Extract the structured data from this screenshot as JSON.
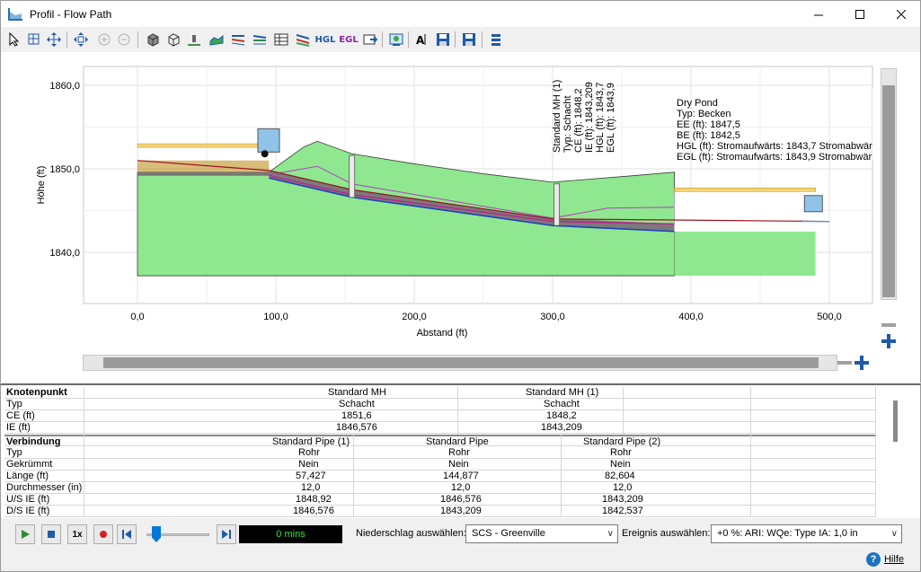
{
  "window": {
    "title": "Profil - Flow Path"
  },
  "toolbar": {
    "buttons": [
      {
        "name": "select-icon"
      },
      {
        "name": "zoom-window-icon"
      },
      {
        "name": "pan-icon"
      },
      {
        "name": "zoom-extents-icon"
      },
      {
        "name": "zoom-in-icon"
      },
      {
        "name": "zoom-out-icon"
      },
      {
        "name": "3d-box-icon"
      },
      {
        "name": "3d-wire-icon"
      },
      {
        "name": "node-icon"
      },
      {
        "name": "surface-icon"
      },
      {
        "name": "profile-lines-icon"
      },
      {
        "name": "profile-lines-2-icon"
      },
      {
        "name": "table-icon"
      },
      {
        "name": "flow-lines-icon"
      },
      {
        "name": "hgl-icon"
      },
      {
        "name": "egl-icon"
      },
      {
        "name": "export-icon"
      },
      {
        "name": "image-icon"
      },
      {
        "name": "text-annotation-icon"
      },
      {
        "name": "save-icon"
      },
      {
        "name": "save-as-icon"
      },
      {
        "name": "settings-icon"
      }
    ],
    "hgl_label": "HGL",
    "egl_label": "EGL"
  },
  "chart_data": {
    "type": "profile",
    "xlabel": "Abstand (ft)",
    "ylabel": "Höhe (ft)",
    "xlim": [
      -40,
      530
    ],
    "ylim": [
      1834.5,
      1862.5
    ],
    "x_ticks": [
      "0,0",
      "100,0",
      "200,0",
      "300,0",
      "400,0",
      "500,0"
    ],
    "x_tick_values": [
      0,
      100,
      200,
      300,
      400,
      500
    ],
    "y_ticks": [
      "1840,0",
      "1850,0",
      "1860,0"
    ],
    "y_tick_values": [
      1840,
      1850,
      1860
    ],
    "grid": true,
    "ground_surface": {
      "points": [
        [
          0,
          1849.6
        ],
        [
          95,
          1849.6
        ],
        [
          120,
          1852.6
        ],
        [
          130,
          1853.3
        ],
        [
          155,
          1851.8
        ],
        [
          200,
          1850.6
        ],
        [
          250,
          1849.4
        ],
        [
          300,
          1848.4
        ],
        [
          360,
          1849.2
        ],
        [
          388,
          1849.6
        ],
        [
          388,
          1837.2
        ],
        [
          0,
          1837.2
        ]
      ]
    },
    "pipe_invert": {
      "points": [
        [
          95,
          1848.9
        ],
        [
          155,
          1846.6
        ],
        [
          300,
          1843.2
        ],
        [
          388,
          1842.5
        ]
      ]
    },
    "hgl_line": {
      "points": [
        [
          95,
          1849.2
        ],
        [
          155,
          1846.9
        ],
        [
          300,
          1843.7
        ],
        [
          388,
          1843.4
        ]
      ]
    },
    "egl_line": {
      "points": [
        [
          95,
          1849.3
        ],
        [
          130,
          1850.3
        ],
        [
          155,
          1848.2
        ],
        [
          300,
          1844.1
        ],
        [
          340,
          1845.3
        ],
        [
          388,
          1845.4
        ]
      ]
    },
    "pond_hgl": {
      "points": [
        [
          0,
          1851.0
        ],
        [
          95,
          1849.8
        ],
        [
          155,
          1847.5
        ],
        [
          300,
          1844.0
        ],
        [
          500,
          1843.7
        ]
      ]
    },
    "nodes": [
      {
        "x": 155,
        "top": 1851.6,
        "bottom": 1846.576
      },
      {
        "x": 303,
        "top": 1848.2,
        "bottom": 1843.209
      }
    ],
    "pond": {
      "x_start": 388,
      "x_end": 490,
      "top": 1847.5,
      "bottom": 1842.5
    },
    "annotations": {
      "mh1": [
        "Standard MH (1)",
        "Typ: Schacht",
        "CE (ft): 1848,2",
        "IE (ft): 1843,209",
        "HGL (ft): 1843,7",
        "EGL (ft): 1843,9"
      ],
      "pond": [
        "Dry Pond",
        "Typ: Becken",
        "EE (ft): 1847,5",
        "BE (ft): 1842,5",
        "HGL (ft): Stromaufwärts: 1843,7 Stromabwär",
        "EGL (ft): Stromaufwärts: 1843,9 Stromabwär"
      ]
    }
  },
  "grid": {
    "nodes_section": {
      "header": "Knotenpunkt",
      "rows": [
        {
          "label": "Typ",
          "values": [
            "Schacht",
            "Schacht"
          ]
        },
        {
          "label": "CE (ft)",
          "values": [
            "1851,6",
            "1848,2"
          ]
        },
        {
          "label": "IE (ft)",
          "values": [
            "1846,576",
            "1843,209"
          ]
        }
      ],
      "columns": [
        "Standard MH",
        "Standard MH (1)"
      ]
    },
    "links_section": {
      "header": "Verbindung",
      "columns": [
        "Standard Pipe (1)",
        "Standard Pipe",
        "Standard Pipe (2)"
      ],
      "rows": [
        {
          "label": "Typ",
          "values": [
            "Rohr",
            "Rohr",
            "Rohr"
          ]
        },
        {
          "label": "Gekrümmt",
          "values": [
            "Nein",
            "Nein",
            "Nein"
          ]
        },
        {
          "label": "Länge (ft)",
          "values": [
            "57,427",
            "144,877",
            "82,604"
          ]
        },
        {
          "label": "Durchmesser (in)",
          "values": [
            "12,0",
            "12,0",
            "12,0"
          ]
        },
        {
          "label": "U/S IE (ft)",
          "values": [
            "1848,92",
            "1846,576",
            "1843,209"
          ]
        },
        {
          "label": "D/S IE (ft)",
          "values": [
            "1846,576",
            "1843,209",
            "1842,537"
          ]
        }
      ]
    }
  },
  "playback": {
    "speed_label": "1x",
    "time": "0 mins",
    "rain_label": "Niederschlag auswählen:",
    "rain_value": "SCS - Greenville",
    "event_label": "Ereignis auswählen:",
    "event_value": "+0 %: ARI: WQe: Type IA: 1,0 in",
    "slider_fraction": 0.1
  },
  "status": {
    "help_label": "Hilfe"
  }
}
